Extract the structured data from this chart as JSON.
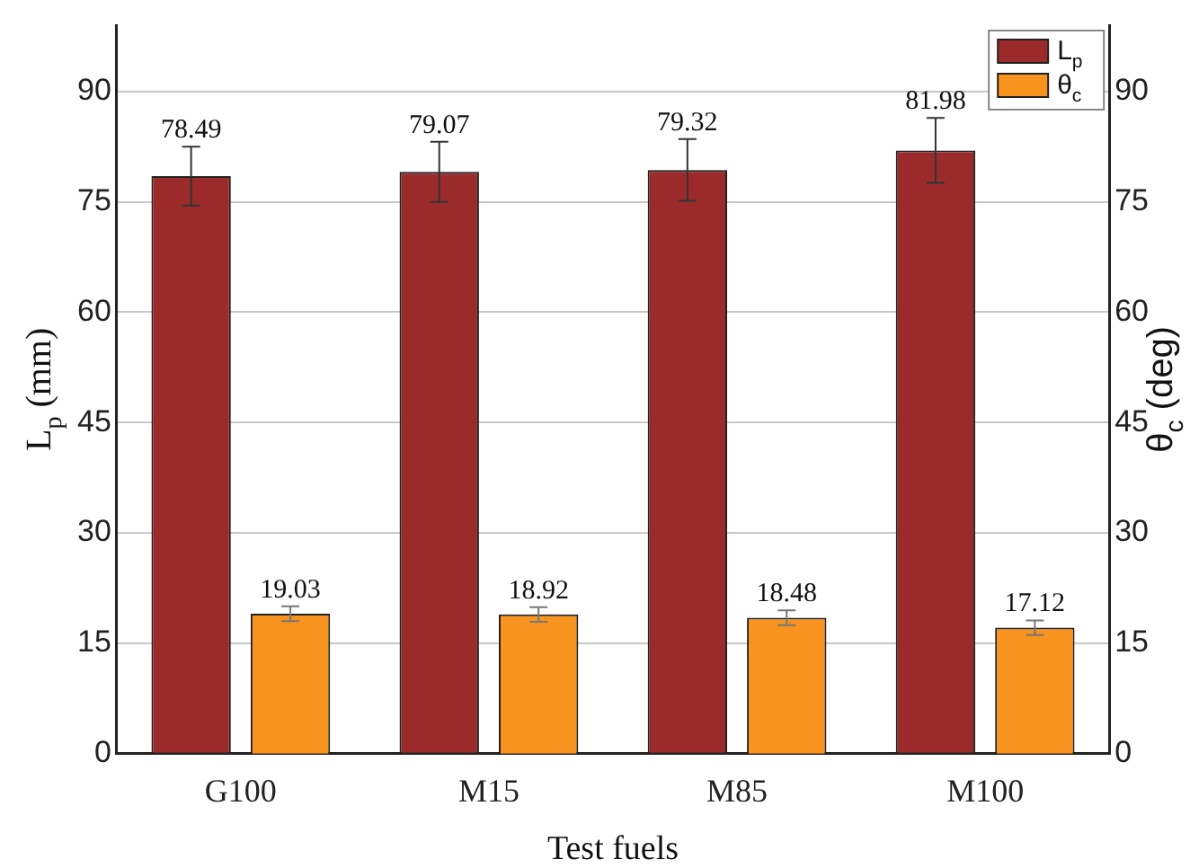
{
  "chart_data": {
    "type": "bar",
    "xlabel": "Test fuels",
    "ylabel": "L$_{p}$ (mm)",
    "y2label": "θ$_{c}$ (deg)",
    "categories": [
      "G100",
      "M15",
      "M85",
      "M100"
    ],
    "series": [
      {
        "name": "L$_{p}$",
        "color": "#9b2b2b",
        "values": [
          78.49,
          79.07,
          79.32,
          81.98
        ],
        "errors": [
          4.0,
          4.1,
          4.2,
          4.4
        ]
      },
      {
        "name": "θ$_{c}$",
        "color": "#f7931e",
        "values": [
          19.03,
          18.92,
          18.48,
          17.12
        ],
        "errors": [
          1.0,
          1.0,
          1.0,
          1.0
        ],
        "axis": "y2"
      }
    ],
    "ylim": [
      0,
      99
    ],
    "yticks": [
      0,
      15,
      30,
      45,
      60,
      75,
      90
    ],
    "y2lim": [
      0,
      99
    ],
    "y2ticks": [
      0,
      15,
      30,
      45,
      60,
      75,
      90
    ],
    "data_labels": true,
    "grid": "y",
    "legend": "top right"
  }
}
